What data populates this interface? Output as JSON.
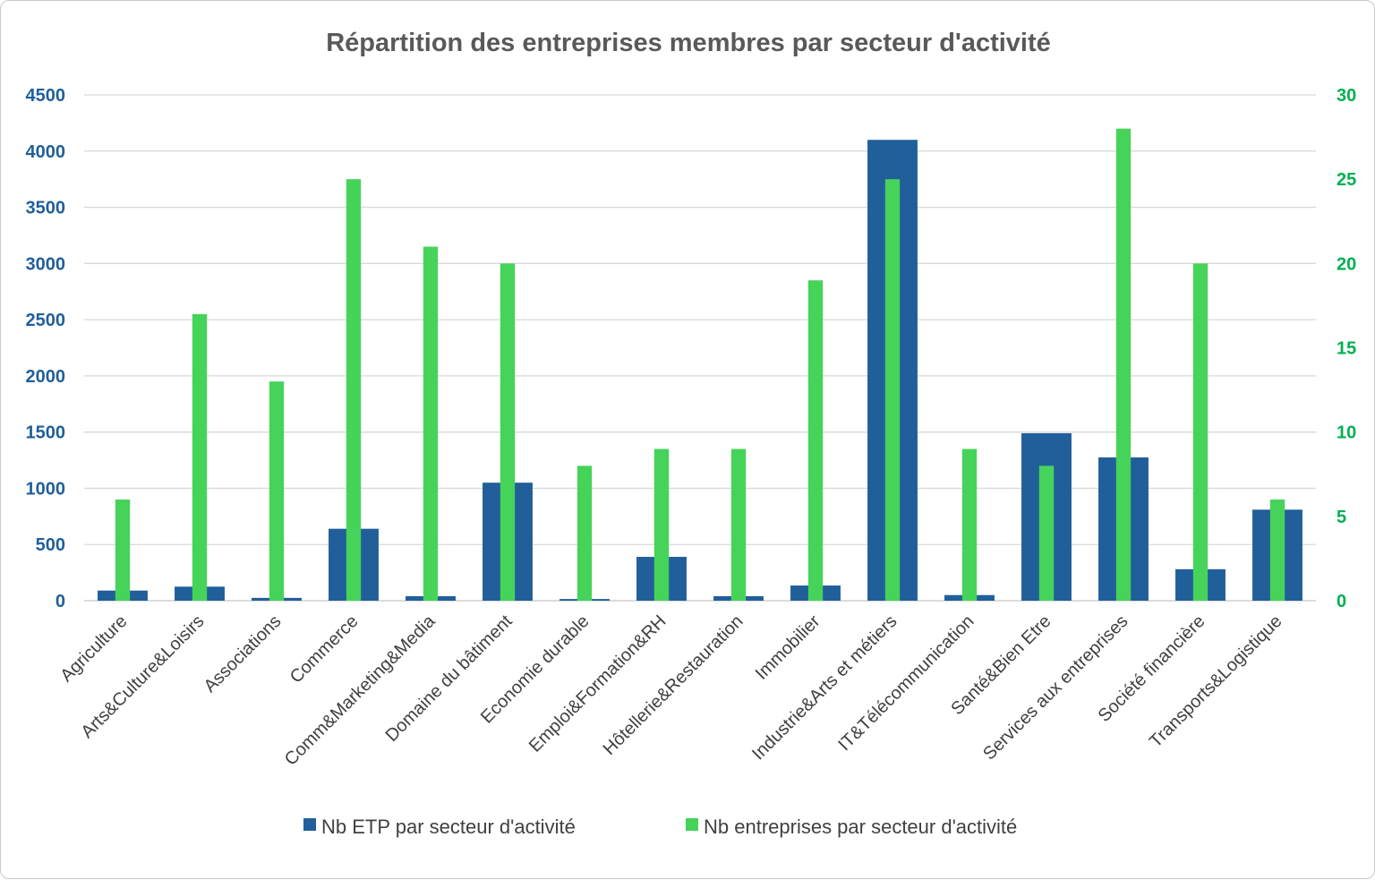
{
  "colors": {
    "etp": "#215f9a",
    "entreprises": "#46d35a",
    "grid": "#d9d9d9",
    "title": "#595959",
    "left_axis": "#215f9a",
    "right_axis": "#00b050",
    "category_text": "#404040"
  },
  "chart_data": {
    "type": "bar",
    "title": "Répartition des entreprises membres par secteur d'activité",
    "categories": [
      "Agriculture",
      "Arts&Culture&Loisirs",
      "Associations",
      "Commerce",
      "Comm&Marketing&Media",
      "Domaine du bâtiment",
      "Economie durable",
      "Emploi&Formation&RH",
      "Hôtellerie&Restauration",
      "Immobilier",
      "Industrie&Arts et métiers",
      "IT&Télécommunication",
      "Santé&Bien Etre",
      "Services aux entreprises",
      "Société financière",
      "Transports&Logistique"
    ],
    "series": [
      {
        "name": "Nb ETP par secteur d'activité",
        "axis": "left",
        "values": [
          90,
          125,
          25,
          640,
          40,
          1050,
          15,
          390,
          40,
          135,
          4100,
          50,
          1490,
          1275,
          280,
          810
        ]
      },
      {
        "name": "Nb entreprises par secteur d'activité",
        "axis": "right",
        "values": [
          6,
          17,
          13,
          25,
          21,
          20,
          8,
          9,
          9,
          19,
          25,
          9,
          8,
          28,
          20,
          6
        ]
      }
    ],
    "y_left": {
      "min": 0,
      "max": 4500,
      "ticks": [
        "0",
        "500",
        "1000",
        "1500",
        "2000",
        "2500",
        "3000",
        "3500",
        "4000",
        "4500"
      ]
    },
    "y_right": {
      "min": 0,
      "max": 30,
      "ticks": [
        "0",
        "5",
        "10",
        "15",
        "20",
        "25",
        "30"
      ]
    },
    "grid": true,
    "legend_position": "bottom"
  }
}
